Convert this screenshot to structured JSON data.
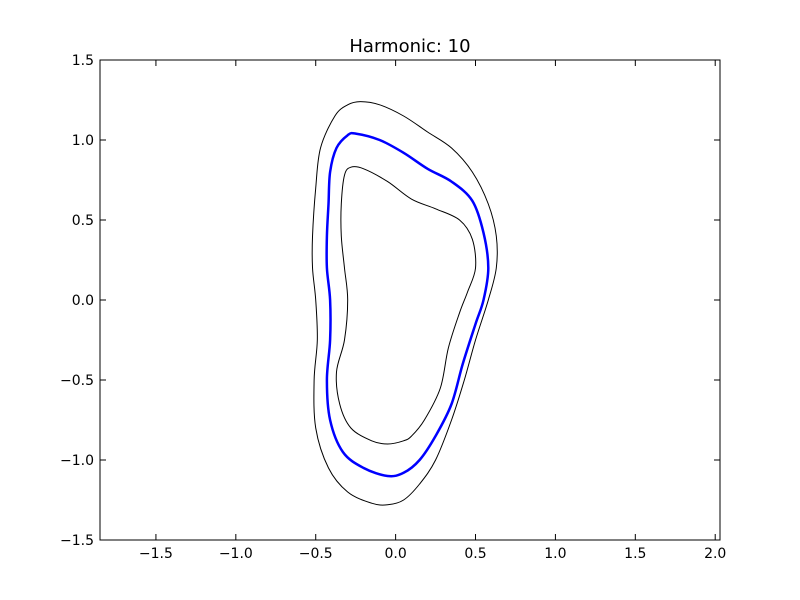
{
  "chart_data": {
    "type": "line",
    "title": "Harmonic: 10",
    "xlabel": "",
    "ylabel": "",
    "xlim": [
      -1.85,
      2.03
    ],
    "ylim": [
      -1.5,
      1.5
    ],
    "grid": false,
    "x_ticks": [
      -1.5,
      -1.0,
      -0.5,
      0.0,
      0.5,
      1.0,
      1.5,
      2.0
    ],
    "y_ticks": [
      -1.5,
      -1.0,
      -0.5,
      0.0,
      0.5,
      1.0,
      1.5
    ],
    "x_tick_labels": [
      "−1.5",
      "−1.0",
      "−0.5",
      "0.0",
      "0.5",
      "1.0",
      "1.5",
      "2.0"
    ],
    "y_tick_labels": [
      "−1.5",
      "−1.0",
      "−0.5",
      "0.0",
      "0.5",
      "1.0",
      "1.5"
    ],
    "series": [
      {
        "color": "#000000",
        "line_width": 1,
        "points": [
          [
            -0.22,
            1.24
          ],
          [
            -0.1,
            1.22
          ],
          [
            0.05,
            1.15
          ],
          [
            0.2,
            1.05
          ],
          [
            0.35,
            0.95
          ],
          [
            0.48,
            0.8
          ],
          [
            0.58,
            0.6
          ],
          [
            0.63,
            0.4
          ],
          [
            0.63,
            0.2
          ],
          [
            0.58,
            0.0
          ],
          [
            0.5,
            -0.25
          ],
          [
            0.43,
            -0.5
          ],
          [
            0.35,
            -0.75
          ],
          [
            0.25,
            -1.0
          ],
          [
            0.15,
            -1.15
          ],
          [
            0.05,
            -1.25
          ],
          [
            -0.05,
            -1.28
          ],
          [
            -0.15,
            -1.27
          ],
          [
            -0.3,
            -1.2
          ],
          [
            -0.42,
            -1.05
          ],
          [
            -0.5,
            -0.8
          ],
          [
            -0.51,
            -0.5
          ],
          [
            -0.49,
            -0.25
          ],
          [
            -0.5,
            0.0
          ],
          [
            -0.52,
            0.2
          ],
          [
            -0.52,
            0.4
          ],
          [
            -0.5,
            0.7
          ],
          [
            -0.47,
            0.95
          ],
          [
            -0.38,
            1.15
          ],
          [
            -0.3,
            1.22
          ],
          [
            -0.22,
            1.24
          ]
        ]
      },
      {
        "color": "#0000ff",
        "line_width": 2.5,
        "points": [
          [
            -0.25,
            1.04
          ],
          [
            -0.1,
            1.0
          ],
          [
            0.05,
            0.92
          ],
          [
            0.2,
            0.82
          ],
          [
            0.35,
            0.74
          ],
          [
            0.48,
            0.62
          ],
          [
            0.55,
            0.42
          ],
          [
            0.58,
            0.2
          ],
          [
            0.55,
            0.0
          ],
          [
            0.5,
            -0.15
          ],
          [
            0.42,
            -0.4
          ],
          [
            0.35,
            -0.65
          ],
          [
            0.25,
            -0.85
          ],
          [
            0.15,
            -1.0
          ],
          [
            0.05,
            -1.08
          ],
          [
            -0.05,
            -1.1
          ],
          [
            -0.2,
            -1.05
          ],
          [
            -0.33,
            -0.95
          ],
          [
            -0.41,
            -0.75
          ],
          [
            -0.43,
            -0.5
          ],
          [
            -0.41,
            -0.25
          ],
          [
            -0.41,
            0.0
          ],
          [
            -0.43,
            0.2
          ],
          [
            -0.43,
            0.4
          ],
          [
            -0.42,
            0.6
          ],
          [
            -0.41,
            0.8
          ],
          [
            -0.37,
            0.95
          ],
          [
            -0.3,
            1.03
          ],
          [
            -0.25,
            1.04
          ]
        ]
      },
      {
        "color": "#000000",
        "line_width": 1,
        "points": [
          [
            -0.28,
            0.83
          ],
          [
            -0.2,
            0.82
          ],
          [
            -0.05,
            0.74
          ],
          [
            0.1,
            0.63
          ],
          [
            0.25,
            0.57
          ],
          [
            0.4,
            0.5
          ],
          [
            0.48,
            0.38
          ],
          [
            0.5,
            0.2
          ],
          [
            0.45,
            0.05
          ],
          [
            0.4,
            -0.08
          ],
          [
            0.33,
            -0.3
          ],
          [
            0.28,
            -0.55
          ],
          [
            0.18,
            -0.75
          ],
          [
            0.1,
            -0.85
          ],
          [
            0.05,
            -0.88
          ],
          [
            -0.05,
            -0.9
          ],
          [
            -0.15,
            -0.88
          ],
          [
            -0.28,
            -0.8
          ],
          [
            -0.35,
            -0.65
          ],
          [
            -0.37,
            -0.45
          ],
          [
            -0.32,
            -0.25
          ],
          [
            -0.3,
            0.0
          ],
          [
            -0.32,
            0.2
          ],
          [
            -0.34,
            0.4
          ],
          [
            -0.34,
            0.6
          ],
          [
            -0.32,
            0.78
          ],
          [
            -0.28,
            0.83
          ]
        ]
      }
    ]
  }
}
